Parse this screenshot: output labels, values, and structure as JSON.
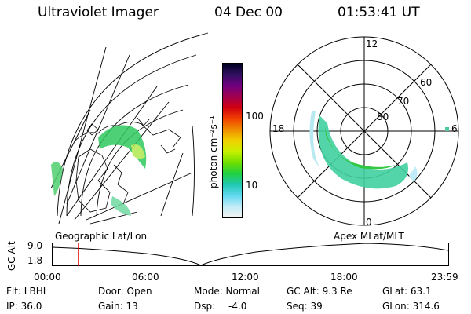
{
  "header": {
    "instrument": "Ultraviolet Imager",
    "date": "04 Dec 00",
    "time": "01:53:41 UT"
  },
  "colorbar": {
    "unit": "photon cm⁻²s⁻¹",
    "ticks": [
      "100",
      "10"
    ],
    "stops": [
      "#000020",
      "#301060",
      "#700080",
      "#a00050",
      "#d00010",
      "#f04000",
      "#f08c00",
      "#f0d000",
      "#c8f000",
      "#70e000",
      "#20d040",
      "#20c8b0",
      "#60d8f0",
      "#c0ecf8",
      "#f4f4f4"
    ]
  },
  "polar_plot": {
    "mlt_labels": {
      "top": "12",
      "left": "18",
      "right": "6",
      "bottom": "0"
    },
    "lat_labels": [
      "60",
      "70",
      "80"
    ]
  },
  "timeline": {
    "left_label": "Geographic Lat/Lon",
    "right_label": "Apex MLat/MLT",
    "y_axis_label": "GC Alt",
    "y_ticks": [
      "9.0",
      "1.8"
    ],
    "x_ticks": [
      "00:00",
      "06:00",
      "12:00",
      "18:00",
      "23:59"
    ],
    "marker_color": "#e00000"
  },
  "status": {
    "filter": "Flt: LBHL",
    "door": "Door: Open",
    "mode": "Mode: Normal",
    "gc_alt": "GC Alt: 9.3 Re",
    "glat": "GLat: 63.1",
    "ip": "IP: 36.0",
    "gain": "Gain: 13",
    "dsp_label": "Dsp:",
    "dsp_value": "-4.0",
    "seq": "Seq: 39",
    "glon": "GLon: 314.6"
  }
}
